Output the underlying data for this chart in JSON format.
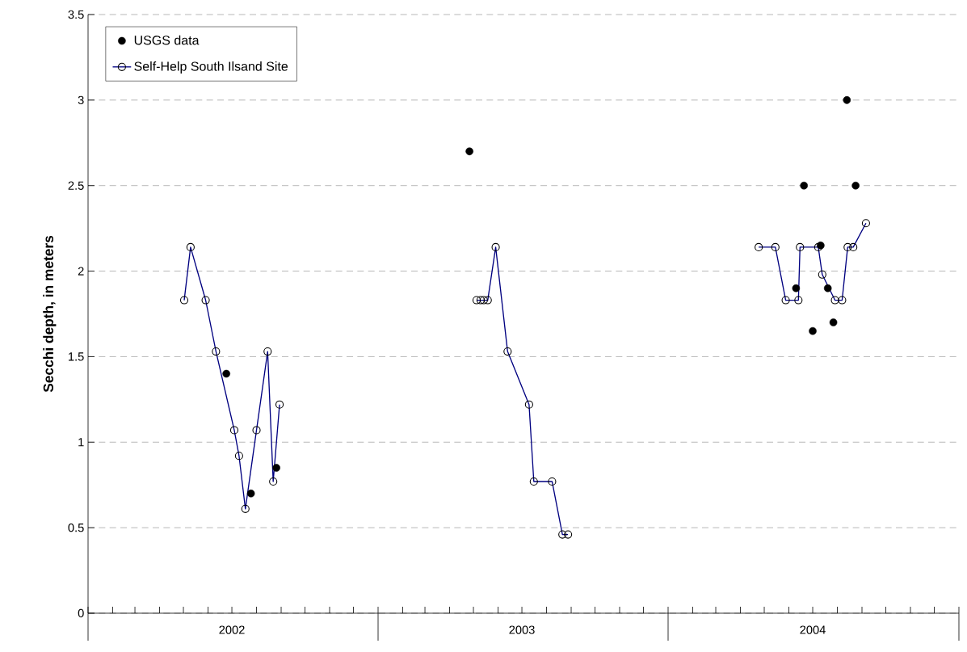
{
  "chart_data": {
    "type": "line",
    "ylabel": "Secchi depth, in meters",
    "ylim": [
      0,
      3.5
    ],
    "yticks": [
      0,
      0.5,
      1,
      1.5,
      2,
      2.5,
      3,
      3.5
    ],
    "xlim": [
      "2002-01-01",
      "2005-01-01"
    ],
    "xticks": [
      {
        "value": "2002-01-01",
        "label": null
      },
      {
        "value": "2002-02-01",
        "label": null
      },
      {
        "value": "2002-03-01",
        "label": null
      },
      {
        "value": "2002-04-01",
        "label": null
      },
      {
        "value": "2002-05-01",
        "label": null
      },
      {
        "value": "2002-06-01",
        "label": null
      },
      {
        "value": "2002-07-01",
        "label": "2002"
      },
      {
        "value": "2002-08-01",
        "label": null
      },
      {
        "value": "2002-09-01",
        "label": null
      },
      {
        "value": "2002-10-01",
        "label": null
      },
      {
        "value": "2002-11-01",
        "label": null
      },
      {
        "value": "2002-12-01",
        "label": null
      },
      {
        "value": "2003-01-01",
        "label": null
      },
      {
        "value": "2003-02-01",
        "label": null
      },
      {
        "value": "2003-03-01",
        "label": null
      },
      {
        "value": "2003-04-01",
        "label": null
      },
      {
        "value": "2003-05-01",
        "label": null
      },
      {
        "value": "2003-06-01",
        "label": null
      },
      {
        "value": "2003-07-01",
        "label": "2003"
      },
      {
        "value": "2003-08-01",
        "label": null
      },
      {
        "value": "2003-09-01",
        "label": null
      },
      {
        "value": "2003-10-01",
        "label": null
      },
      {
        "value": "2003-11-01",
        "label": null
      },
      {
        "value": "2003-12-01",
        "label": null
      },
      {
        "value": "2004-01-01",
        "label": null
      },
      {
        "value": "2004-02-01",
        "label": null
      },
      {
        "value": "2004-03-01",
        "label": null
      },
      {
        "value": "2004-04-01",
        "label": null
      },
      {
        "value": "2004-05-01",
        "label": null
      },
      {
        "value": "2004-06-01",
        "label": null
      },
      {
        "value": "2004-07-01",
        "label": "2004"
      },
      {
        "value": "2004-08-01",
        "label": null
      },
      {
        "value": "2004-09-01",
        "label": null
      },
      {
        "value": "2004-10-01",
        "label": null
      },
      {
        "value": "2004-11-01",
        "label": null
      },
      {
        "value": "2004-12-01",
        "label": null
      },
      {
        "value": "2005-01-01",
        "label": null
      }
    ],
    "grid": "y",
    "legend": "top left",
    "marker": "circle",
    "series": [
      {
        "name": "USGS data",
        "type": "scatter",
        "color": "#000000",
        "x": [
          "2002-06-24",
          "2002-07-25",
          "2002-08-26",
          "2003-04-26",
          "2004-06-10",
          "2004-06-20",
          "2004-07-01",
          "2004-07-11",
          "2004-07-20",
          "2004-07-27",
          "2004-08-13",
          "2004-08-24"
        ],
        "values": [
          1.4,
          0.7,
          0.85,
          2.7,
          1.9,
          2.5,
          1.65,
          2.15,
          1.9,
          1.7,
          3.0,
          2.5
        ]
      },
      {
        "name": "Self-Help South Ilsand Site",
        "color": "#000080",
        "x": [
          "2002-05-02",
          "2002-05-10",
          "2002-05-29",
          "2002-06-11",
          "2002-07-04",
          "2002-07-10",
          "2002-07-18",
          "2002-08-01",
          "2002-08-15",
          "2002-08-22",
          "2002-08-30",
          "2003-01-01",
          "2003-05-05",
          "2003-05-10",
          "2003-05-14",
          "2003-05-19",
          "2003-05-29",
          "2003-06-13",
          "2003-07-10",
          "2003-07-16",
          "2003-08-08",
          "2003-08-21",
          "2003-08-28",
          "2004-01-01",
          "2004-04-24",
          "2004-05-15",
          "2004-05-28",
          "2004-06-13",
          "2004-06-15",
          "2004-07-08",
          "2004-07-13",
          "2004-07-29",
          "2004-08-07",
          "2004-08-14",
          "2004-08-21",
          "2004-09-06"
        ],
        "values": [
          1.83,
          2.14,
          1.83,
          1.53,
          1.07,
          0.92,
          0.61,
          1.07,
          1.53,
          0.77,
          1.22,
          null,
          1.83,
          1.83,
          1.83,
          1.83,
          2.14,
          1.53,
          1.22,
          0.77,
          0.77,
          0.46,
          0.46,
          null,
          2.14,
          2.14,
          1.83,
          1.83,
          2.14,
          2.14,
          1.98,
          1.83,
          1.83,
          2.14,
          2.14,
          2.28
        ]
      }
    ]
  }
}
